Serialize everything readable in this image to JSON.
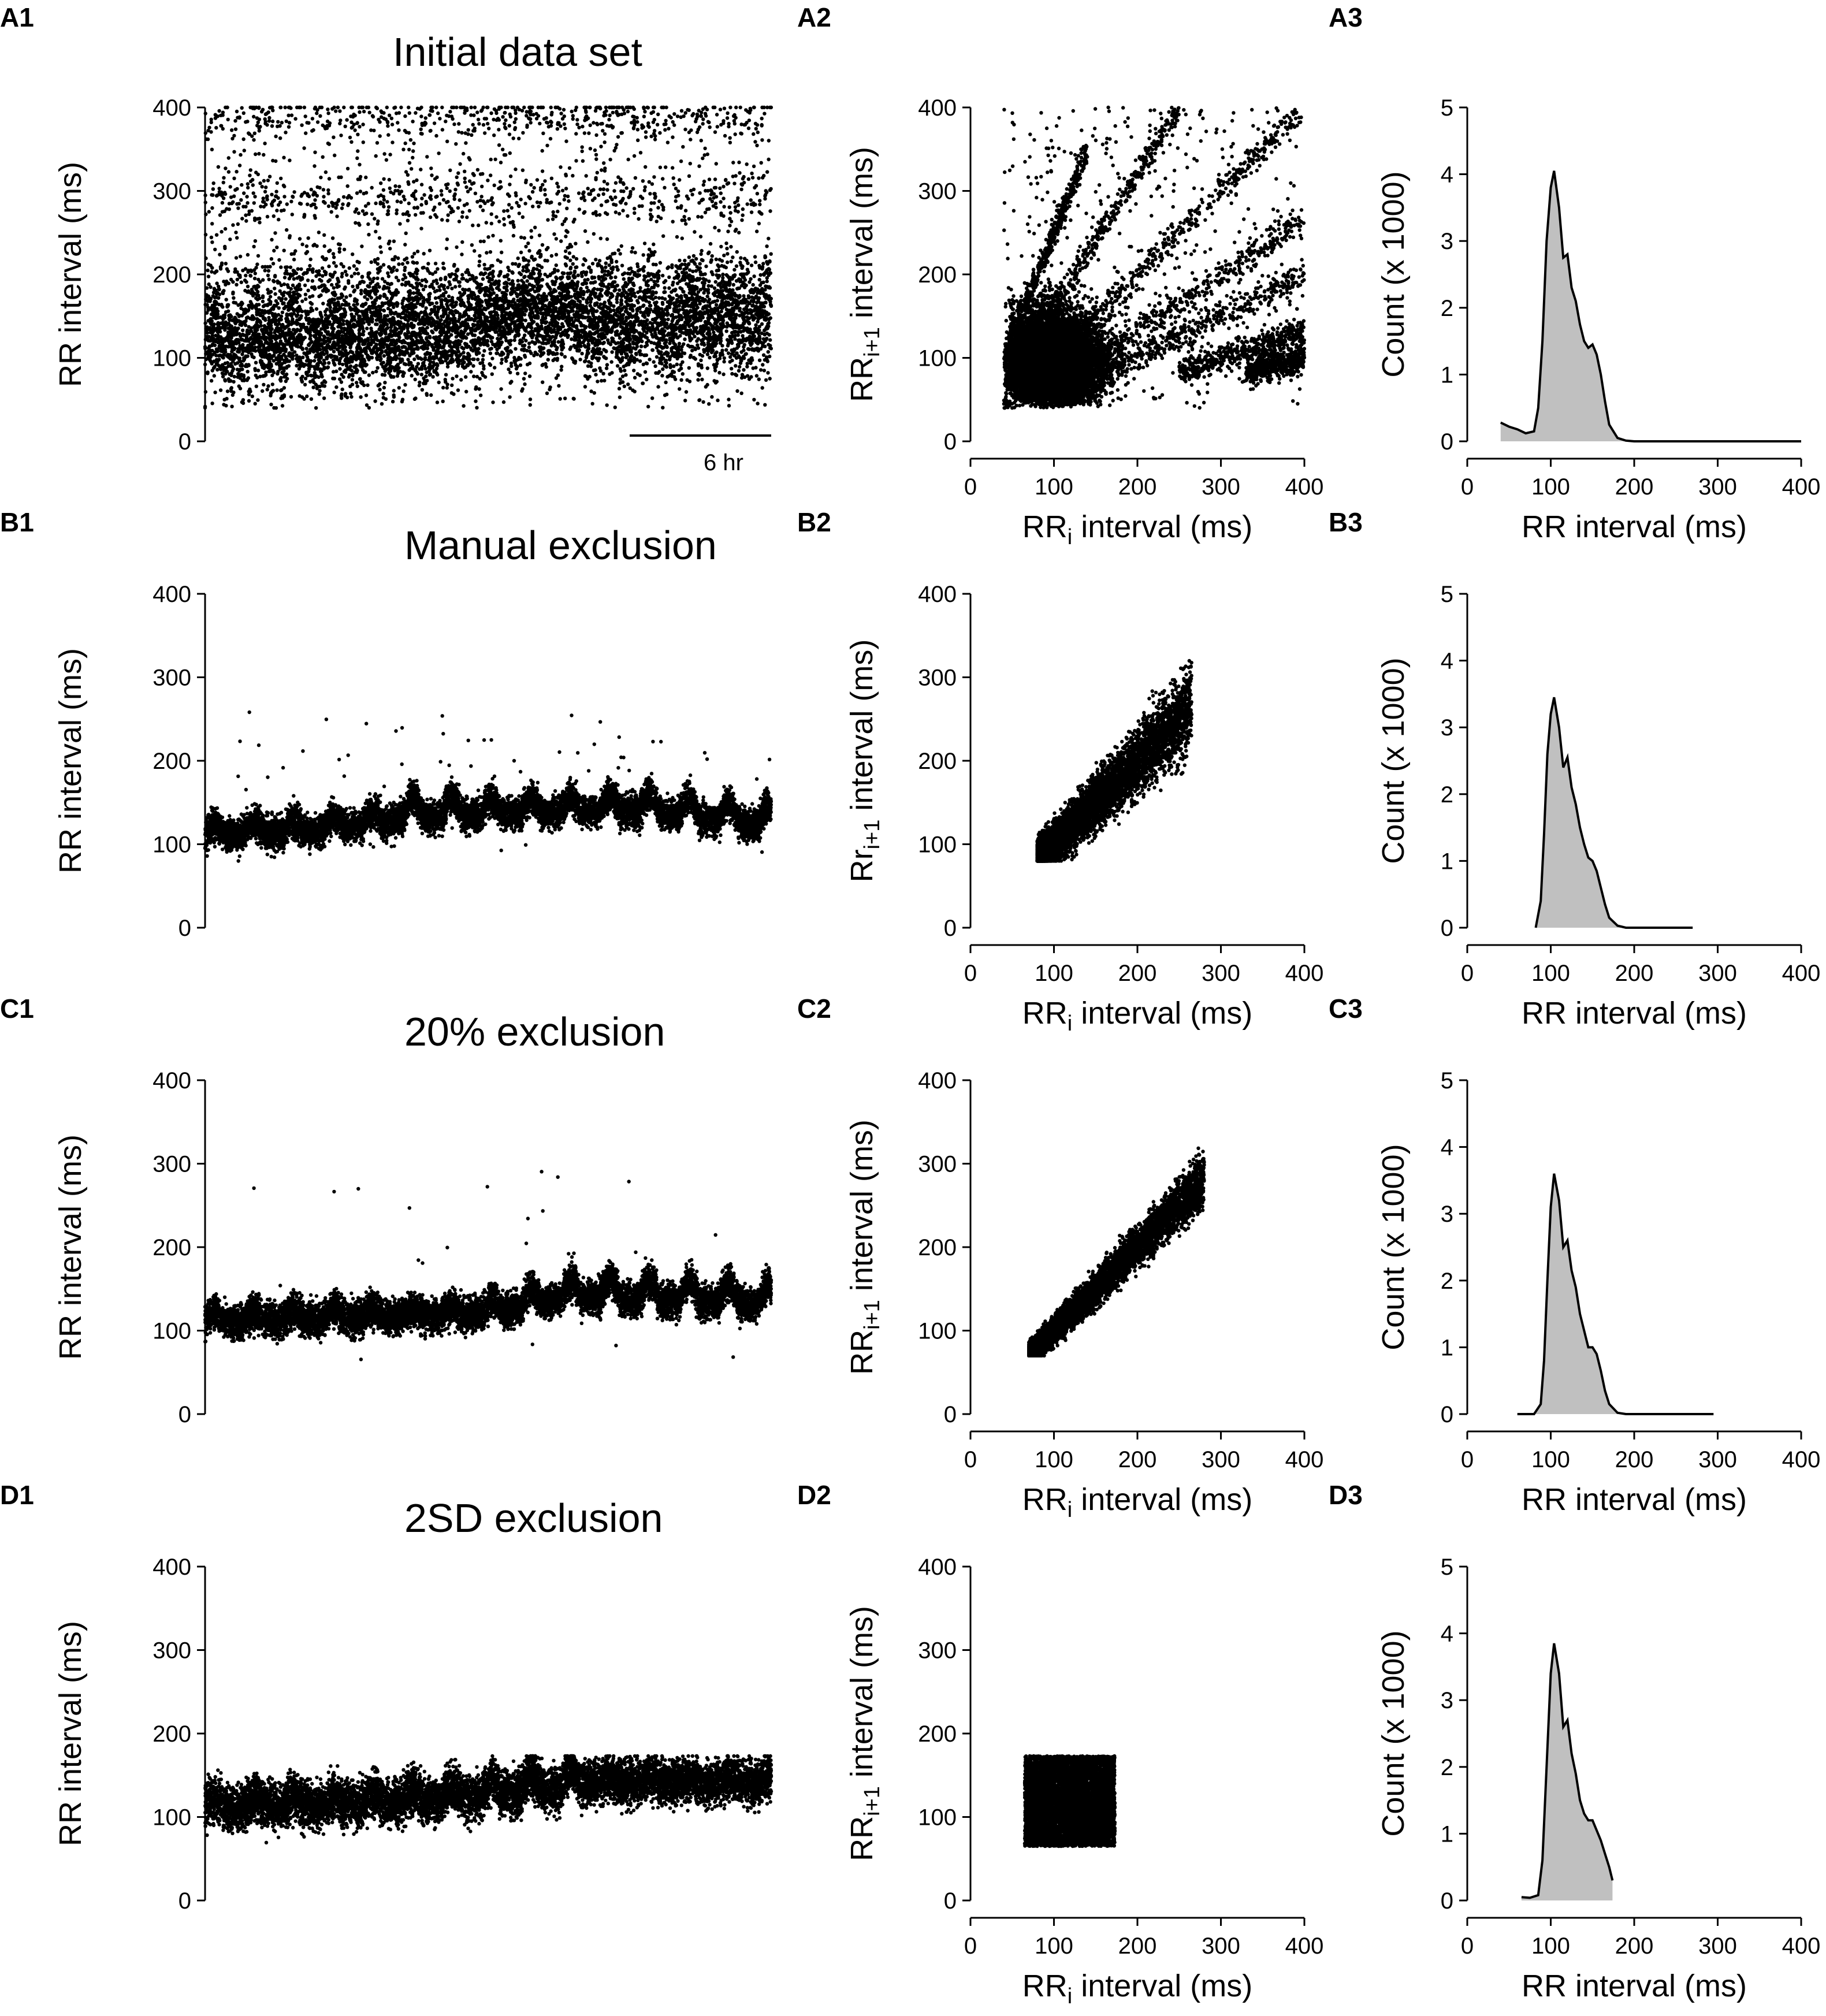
{
  "figure": {
    "background": "#ffffff",
    "ink": "#000000",
    "hist_fill": "#c0c0c0"
  },
  "chart_data": [
    {
      "panel": "A1",
      "type": "scatter",
      "title": "Initial data set",
      "ylabel": "RR interval (ms)",
      "xlabel": "",
      "ylim": [
        0,
        400
      ],
      "yticks": [
        "0",
        "100",
        "200",
        "300",
        "400"
      ],
      "xlim": [
        0,
        1000
      ],
      "scale_bar": {
        "label": "6 hr",
        "from": 750,
        "to": 1000
      },
      "series": [
        {
          "segments": [
            [
              0,
              115,
              200
            ],
            [
              200,
              120,
              150
            ],
            [
              400,
              125,
              60
            ],
            [
              500,
              140,
              120
            ],
            [
              600,
              150,
              180
            ],
            [
              750,
              135,
              200
            ],
            [
              1000,
              140,
              0
            ]
          ],
          "band": 90,
          "floor": 40,
          "ceil": 400,
          "outlier_rate": 0.28,
          "clusters": [
            200,
            290,
            390
          ]
        }
      ]
    },
    {
      "panel": "A2",
      "type": "scatter",
      "title": "",
      "xlabel": "RR_i interval (ms)",
      "ylabel": "RR_i+1 interval (ms)",
      "xlim": [
        0,
        400
      ],
      "ylim": [
        0,
        400
      ],
      "xticks": [
        "0",
        "100",
        "200",
        "300",
        "400"
      ],
      "yticks": [
        "0",
        "100",
        "200",
        "300",
        "400"
      ],
      "series": [
        {
          "core": {
            "x": [
              40,
              190
            ],
            "y": [
              40,
              190
            ]
          },
          "rays": [
            [
              2.5,
              40,
              140
            ],
            [
              1.6,
              40,
              250
            ],
            [
              1.0,
              40,
              400
            ],
            [
              0.66,
              80,
              400
            ],
            [
              0.5,
              100,
              400
            ],
            [
              0.33,
              250,
              400
            ],
            [
              0.25,
              330,
              400
            ]
          ],
          "floor": 40
        }
      ]
    },
    {
      "panel": "A3",
      "type": "area",
      "title": "",
      "xlabel": "RR interval (ms)",
      "ylabel": "Count (x 1000)",
      "xlim": [
        0,
        400
      ],
      "ylim": [
        0,
        5
      ],
      "xticks": [
        "0",
        "100",
        "200",
        "300",
        "400"
      ],
      "yticks": [
        "0",
        "1",
        "2",
        "3",
        "4",
        "5"
      ],
      "x": [
        40,
        50,
        60,
        70,
        80,
        85,
        90,
        95,
        100,
        104,
        110,
        115,
        120,
        125,
        130,
        135,
        140,
        145,
        150,
        155,
        160,
        165,
        170,
        180,
        190,
        200,
        250,
        300,
        350,
        400
      ],
      "y": [
        0.28,
        0.22,
        0.18,
        0.12,
        0.15,
        0.5,
        1.5,
        3.0,
        3.8,
        4.05,
        3.5,
        2.75,
        2.8,
        2.3,
        2.1,
        1.75,
        1.5,
        1.4,
        1.45,
        1.3,
        1.0,
        0.6,
        0.25,
        0.05,
        0.01,
        0,
        0,
        0,
        0,
        0
      ]
    },
    {
      "panel": "B1",
      "type": "scatter",
      "title": "Manual exclusion",
      "ylabel": "RR interval (ms)",
      "xlabel": "",
      "ylim": [
        0,
        400
      ],
      "yticks": [
        "0",
        "100",
        "200",
        "300",
        "400"
      ],
      "xlim": [
        0,
        1000
      ],
      "series": [
        {
          "segments": [
            [
              0,
              110,
              100
            ],
            [
              200,
              115,
              120
            ],
            [
              350,
              130,
              200
            ],
            [
              500,
              135,
              150
            ],
            [
              750,
              140,
              200
            ],
            [
              1000,
              120,
              0
            ]
          ],
          "band": 28,
          "floor": 78,
          "ceil": 260,
          "outlier_rate": 0.01,
          "clusters": []
        }
      ]
    },
    {
      "panel": "B2",
      "type": "scatter",
      "title": "",
      "xlabel": "RR_i interval (ms)",
      "ylabel": "Rr_i+1 interval (ms)",
      "xlim": [
        0,
        400
      ],
      "ylim": [
        0,
        400
      ],
      "xticks": [
        "0",
        "100",
        "200",
        "300",
        "400"
      ],
      "yticks": [
        "0",
        "100",
        "200",
        "300",
        "400"
      ],
      "series": [
        {
          "diagonal": [
            80,
            265
          ],
          "spread": 14,
          "floor": 80
        }
      ]
    },
    {
      "panel": "B3",
      "type": "area",
      "title": "",
      "xlabel": "RR interval (ms)",
      "ylabel": "Count (x 1000)",
      "xlim": [
        0,
        400
      ],
      "ylim": [
        0,
        5
      ],
      "xticks": [
        "0",
        "100",
        "200",
        "300",
        "400"
      ],
      "yticks": [
        "0",
        "1",
        "2",
        "3",
        "4",
        "5"
      ],
      "x": [
        82,
        88,
        92,
        96,
        100,
        104,
        110,
        115,
        120,
        125,
        130,
        135,
        140,
        145,
        150,
        155,
        160,
        165,
        170,
        180,
        190,
        200,
        230,
        270
      ],
      "y": [
        0,
        0.4,
        1.4,
        2.6,
        3.2,
        3.45,
        3.0,
        2.4,
        2.55,
        2.1,
        1.85,
        1.5,
        1.25,
        1.05,
        1.0,
        0.85,
        0.6,
        0.35,
        0.15,
        0.03,
        0,
        0,
        0,
        0
      ]
    },
    {
      "panel": "C1",
      "type": "scatter",
      "title": "20% exclusion",
      "ylabel": "RR interval (ms)",
      "xlabel": "",
      "ylim": [
        0,
        400
      ],
      "yticks": [
        "0",
        "100",
        "200",
        "300",
        "400"
      ],
      "xlim": [
        0,
        1000
      ],
      "series": [
        {
          "segments": [
            [
              0,
              110,
              100
            ],
            [
              300,
              115,
              80
            ],
            [
              500,
              120,
              150
            ],
            [
              650,
              140,
              200
            ],
            [
              1000,
              130,
              0
            ]
          ],
          "band": 30,
          "floor": 60,
          "ceil": 295,
          "outlier_rate": 0.004,
          "clusters": []
        }
      ]
    },
    {
      "panel": "C2",
      "type": "scatter",
      "title": "",
      "xlabel": "RR_i interval (ms)",
      "ylabel": "RR_i+1 interval (ms)",
      "xlim": [
        0,
        400
      ],
      "ylim": [
        0,
        400
      ],
      "xticks": [
        "0",
        "100",
        "200",
        "300",
        "400"
      ],
      "yticks": [
        "0",
        "100",
        "200",
        "300",
        "400"
      ],
      "series": [
        {
          "diagonal": [
            70,
            280
          ],
          "spread": 9,
          "floor": 70
        }
      ]
    },
    {
      "panel": "C3",
      "type": "area",
      "title": "",
      "xlabel": "RR interval (ms)",
      "ylabel": "Count (x 1000)",
      "xlim": [
        0,
        400
      ],
      "ylim": [
        0,
        5
      ],
      "xticks": [
        "0",
        "100",
        "200",
        "300",
        "400"
      ],
      "yticks": [
        "0",
        "1",
        "2",
        "3",
        "4",
        "5"
      ],
      "x": [
        60,
        80,
        88,
        92,
        96,
        100,
        104,
        110,
        115,
        120,
        125,
        130,
        135,
        140,
        145,
        150,
        155,
        160,
        165,
        170,
        180,
        190,
        200,
        250,
        295
      ],
      "y": [
        0,
        0,
        0.15,
        0.8,
        2.0,
        3.1,
        3.6,
        3.2,
        2.5,
        2.6,
        2.15,
        1.9,
        1.5,
        1.25,
        1.0,
        1.0,
        0.9,
        0.65,
        0.35,
        0.15,
        0.02,
        0,
        0,
        0,
        0
      ]
    },
    {
      "panel": "D1",
      "type": "scatter",
      "title": "2SD exclusion",
      "ylabel": "RR interval (ms)",
      "xlabel": "",
      "ylim": [
        0,
        400
      ],
      "yticks": [
        "0",
        "100",
        "200",
        "300",
        "400"
      ],
      "xlim": [
        0,
        1000
      ],
      "series": [
        {
          "segments": [
            [
              0,
              110,
              100
            ],
            [
              300,
              115,
              120
            ],
            [
              500,
              125,
              150
            ],
            [
              680,
              140,
              60
            ],
            [
              1000,
              140,
              0
            ]
          ],
          "band": 40,
          "floor": 65,
          "ceil": 173,
          "outlier_rate": 0.0,
          "clusters": []
        }
      ]
    },
    {
      "panel": "D2",
      "type": "scatter",
      "title": "",
      "xlabel": "RR_i interval (ms)",
      "ylabel": "RR_i+1 interval (ms)",
      "xlim": [
        0,
        400
      ],
      "ylim": [
        0,
        400
      ],
      "xticks": [
        "0",
        "100",
        "200",
        "300",
        "400"
      ],
      "yticks": [
        "0",
        "100",
        "200",
        "300",
        "400"
      ],
      "series": [
        {
          "box": {
            "x": [
              65,
              173
            ],
            "y": [
              65,
              173
            ]
          }
        }
      ]
    },
    {
      "panel": "D3",
      "type": "area",
      "title": "",
      "xlabel": "RR interval (ms)",
      "ylabel": "Count (x 1000)",
      "xlim": [
        0,
        400
      ],
      "ylim": [
        0,
        5
      ],
      "xticks": [
        "0",
        "100",
        "200",
        "300",
        "400"
      ],
      "yticks": [
        "0",
        "1",
        "2",
        "3",
        "4",
        "5"
      ],
      "x": [
        65,
        75,
        85,
        90,
        95,
        100,
        104,
        110,
        115,
        120,
        125,
        130,
        135,
        140,
        145,
        150,
        155,
        160,
        165,
        170,
        174
      ],
      "y": [
        0.05,
        0.04,
        0.08,
        0.6,
        2.0,
        3.4,
        3.85,
        3.4,
        2.6,
        2.7,
        2.2,
        1.9,
        1.5,
        1.3,
        1.2,
        1.2,
        1.05,
        0.9,
        0.7,
        0.5,
        0.3
      ]
    }
  ]
}
